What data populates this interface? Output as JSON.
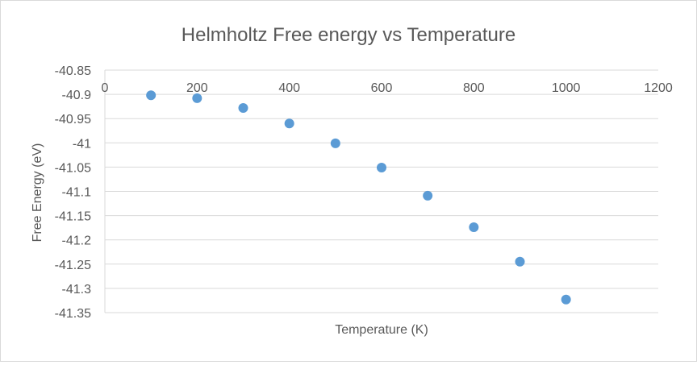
{
  "chart_data": {
    "type": "scatter",
    "title": "Helmholtz Free energy vs Temperature",
    "xlabel": "Temperature (K)",
    "ylabel": "Free Energy (eV)",
    "xlim": [
      0,
      1200
    ],
    "ylim": [
      -41.35,
      -40.85
    ],
    "x_ticks": [
      0,
      200,
      400,
      600,
      800,
      1000,
      1200
    ],
    "y_ticks": [
      -40.85,
      -40.9,
      -40.95,
      -41,
      -41.05,
      -41.1,
      -41.15,
      -41.2,
      -41.25,
      -41.3,
      -41.35
    ],
    "x_tick_labels": [
      "0",
      "200",
      "400",
      "600",
      "800",
      "1000",
      "1200"
    ],
    "y_tick_labels": [
      "-40.85",
      "-40.9",
      "-40.95",
      "-41",
      "-41.05",
      "-41.1",
      "-41.15",
      "-41.2",
      "-41.25",
      "-41.3",
      "-41.35"
    ],
    "grid": true,
    "x_axis_position": "top",
    "series": [
      {
        "name": "Free Energy",
        "color": "#5B9BD5",
        "x": [
          100,
          200,
          300,
          400,
          500,
          600,
          700,
          800,
          900,
          1000
        ],
        "y": [
          -40.902,
          -40.908,
          -40.928,
          -40.96,
          -41.001,
          -41.051,
          -41.109,
          -41.174,
          -41.245,
          -41.323
        ]
      }
    ]
  }
}
